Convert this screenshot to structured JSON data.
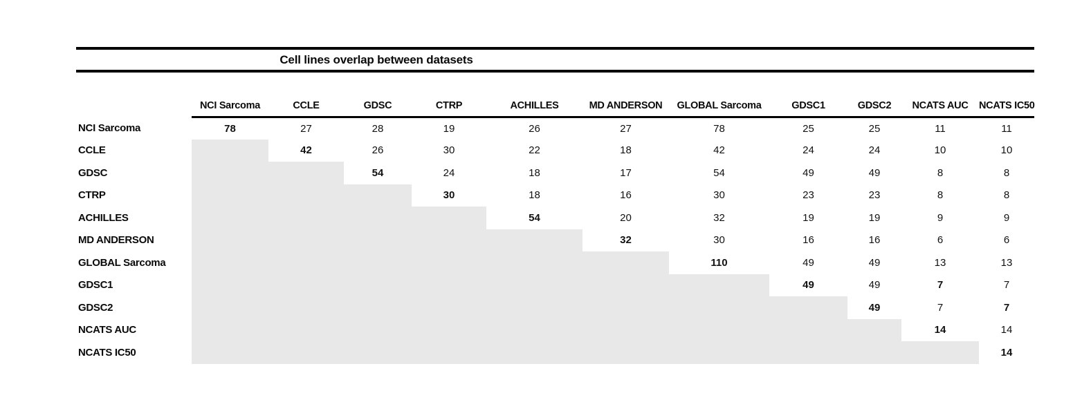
{
  "title": "Cell lines overlap between datasets",
  "table": {
    "datasets": [
      "NCI Sarcoma",
      "CCLE",
      "GDSC",
      "CTRP",
      "ACHILLES",
      "MD ANDERSON",
      "GLOBAL Sarcoma",
      "GDSC1",
      "GDSC2",
      "NCATS AUC",
      "NCATS IC50"
    ],
    "matrix": [
      [
        78,
        27,
        28,
        19,
        26,
        27,
        78,
        25,
        25,
        11,
        11
      ],
      [
        null,
        42,
        26,
        30,
        22,
        18,
        42,
        24,
        24,
        10,
        10
      ],
      [
        null,
        null,
        54,
        24,
        18,
        17,
        54,
        49,
        49,
        8,
        8
      ],
      [
        null,
        null,
        null,
        30,
        18,
        16,
        30,
        23,
        23,
        8,
        8
      ],
      [
        null,
        null,
        null,
        null,
        54,
        20,
        32,
        19,
        19,
        9,
        9
      ],
      [
        null,
        null,
        null,
        null,
        null,
        32,
        30,
        16,
        16,
        6,
        6
      ],
      [
        null,
        null,
        null,
        null,
        null,
        null,
        110,
        49,
        49,
        13,
        13
      ],
      [
        null,
        null,
        null,
        null,
        null,
        null,
        null,
        49,
        49,
        7,
        7
      ],
      [
        null,
        null,
        null,
        null,
        null,
        null,
        null,
        null,
        49,
        7,
        7
      ],
      [
        null,
        null,
        null,
        null,
        null,
        null,
        null,
        null,
        null,
        14,
        14
      ],
      [
        null,
        null,
        null,
        null,
        null,
        null,
        null,
        null,
        null,
        null,
        14
      ]
    ],
    "bold_cells": [
      [
        0,
        0
      ],
      [
        1,
        1
      ],
      [
        2,
        2
      ],
      [
        3,
        3
      ],
      [
        4,
        4
      ],
      [
        5,
        5
      ],
      [
        6,
        6
      ],
      [
        7,
        7
      ],
      [
        7,
        9
      ],
      [
        8,
        8
      ],
      [
        8,
        10
      ],
      [
        9,
        9
      ],
      [
        10,
        10
      ]
    ],
    "colors": {
      "shaded_cell": "#e8e8e8",
      "rule": "#000000",
      "text": "#111111"
    }
  }
}
